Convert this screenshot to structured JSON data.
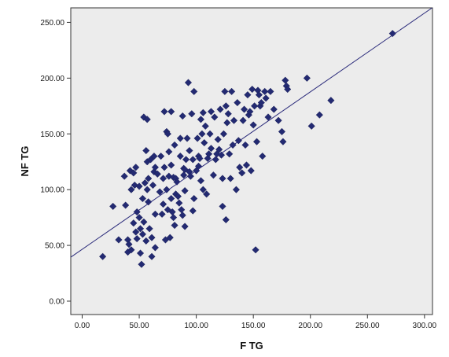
{
  "chart_data": {
    "type": "scatter",
    "title": "",
    "xlabel": "F TG",
    "ylabel": "NF TG",
    "xlim": [
      -10,
      307
    ],
    "ylim": [
      -12,
      263
    ],
    "x_ticks": [
      0,
      50,
      100,
      150,
      200,
      250,
      300
    ],
    "y_ticks": [
      0,
      50,
      100,
      150,
      200,
      250
    ],
    "x_tick_labels": [
      "0.00",
      "50.00",
      "100.00",
      "150.00",
      "200.00",
      "250.00",
      "300.00"
    ],
    "y_tick_labels": [
      "0.00",
      "50.00",
      "100.00",
      "150.00",
      "200.00",
      "250.00"
    ],
    "grid": false,
    "background_color": "#ececec",
    "marker_color": "#232a72",
    "line_color": "#2a2a7a",
    "fit_line": {
      "intercept": 46.5,
      "slope": 0.706
    },
    "series": [
      {
        "marker": "diamond",
        "points": [
          [
            18,
            40
          ],
          [
            27,
            85
          ],
          [
            32,
            55
          ],
          [
            37,
            112
          ],
          [
            38,
            86
          ],
          [
            40,
            44
          ],
          [
            40,
            55
          ],
          [
            41,
            51
          ],
          [
            42,
            117
          ],
          [
            43,
            100
          ],
          [
            43,
            46
          ],
          [
            45,
            115
          ],
          [
            45,
            70
          ],
          [
            46,
            104
          ],
          [
            47,
            120
          ],
          [
            47,
            62
          ],
          [
            48,
            80
          ],
          [
            48,
            56
          ],
          [
            50,
            103
          ],
          [
            50,
            75
          ],
          [
            51,
            65
          ],
          [
            51,
            43
          ],
          [
            52,
            33
          ],
          [
            53,
            60
          ],
          [
            53,
            92
          ],
          [
            54,
            165
          ],
          [
            54,
            71
          ],
          [
            55,
            106
          ],
          [
            56,
            135
          ],
          [
            56,
            54
          ],
          [
            57,
            125
          ],
          [
            57,
            100
          ],
          [
            57,
            163
          ],
          [
            58,
            89
          ],
          [
            58,
            110
          ],
          [
            59,
            65
          ],
          [
            60,
            127
          ],
          [
            61,
            57
          ],
          [
            61,
            40
          ],
          [
            62,
            104
          ],
          [
            63,
            130
          ],
          [
            63,
            116
          ],
          [
            64,
            78
          ],
          [
            64,
            120
          ],
          [
            64,
            48
          ],
          [
            66,
            114
          ],
          [
            68,
            98
          ],
          [
            69,
            130
          ],
          [
            70,
            78
          ],
          [
            71,
            110
          ],
          [
            71,
            87
          ],
          [
            72,
            120
          ],
          [
            72,
            170
          ],
          [
            73,
            55
          ],
          [
            74,
            100
          ],
          [
            74,
            152
          ],
          [
            75,
            82
          ],
          [
            75,
            150
          ],
          [
            76,
            134
          ],
          [
            76,
            112
          ],
          [
            77,
            57
          ],
          [
            78,
            170
          ],
          [
            78,
            122
          ],
          [
            78,
            92
          ],
          [
            79,
            80
          ],
          [
            80,
            111
          ],
          [
            80,
            75
          ],
          [
            81,
            140
          ],
          [
            81,
            68
          ],
          [
            82,
            96
          ],
          [
            82,
            110
          ],
          [
            83,
            107
          ],
          [
            84,
            94
          ],
          [
            85,
            88
          ],
          [
            86,
            130
          ],
          [
            86,
            146
          ],
          [
            87,
            82
          ],
          [
            88,
            77
          ],
          [
            88,
            166
          ],
          [
            89,
            119
          ],
          [
            89,
            113
          ],
          [
            90,
            67
          ],
          [
            90,
            99
          ],
          [
            90,
            118
          ],
          [
            91,
            127
          ],
          [
            92,
            146
          ],
          [
            93,
            196
          ],
          [
            94,
            116
          ],
          [
            94,
            135
          ],
          [
            95,
            112
          ],
          [
            96,
            168
          ],
          [
            97,
            127
          ],
          [
            97,
            81
          ],
          [
            98,
            188
          ],
          [
            98,
            92
          ],
          [
            100,
            117
          ],
          [
            101,
            146
          ],
          [
            102,
            121
          ],
          [
            102,
            130
          ],
          [
            103,
            128
          ],
          [
            104,
            108
          ],
          [
            104,
            163
          ],
          [
            105,
            150
          ],
          [
            106,
            169
          ],
          [
            106,
            100
          ],
          [
            107,
            142
          ],
          [
            108,
            157
          ],
          [
            109,
            96
          ],
          [
            110,
            128
          ],
          [
            111,
            132
          ],
          [
            112,
            150
          ],
          [
            113,
            137
          ],
          [
            113,
            170
          ],
          [
            115,
            113
          ],
          [
            116,
            165
          ],
          [
            117,
            127
          ],
          [
            118,
            132
          ],
          [
            119,
            145
          ],
          [
            120,
            136
          ],
          [
            121,
            172
          ],
          [
            122,
            131
          ],
          [
            123,
            110
          ],
          [
            123,
            85
          ],
          [
            124,
            150
          ],
          [
            125,
            188
          ],
          [
            126,
            175
          ],
          [
            126,
            73
          ],
          [
            127,
            160
          ],
          [
            128,
            168
          ],
          [
            129,
            132
          ],
          [
            130,
            110
          ],
          [
            131,
            188
          ],
          [
            132,
            140
          ],
          [
            133,
            162
          ],
          [
            135,
            100
          ],
          [
            136,
            178
          ],
          [
            137,
            144
          ],
          [
            138,
            120
          ],
          [
            140,
            115
          ],
          [
            141,
            162
          ],
          [
            142,
            172
          ],
          [
            143,
            140
          ],
          [
            144,
            122
          ],
          [
            145,
            185
          ],
          [
            146,
            167
          ],
          [
            147,
            170
          ],
          [
            148,
            117
          ],
          [
            149,
            190
          ],
          [
            150,
            158
          ],
          [
            151,
            175
          ],
          [
            152,
            46
          ],
          [
            153,
            143
          ],
          [
            154,
            189
          ],
          [
            155,
            185
          ],
          [
            156,
            175
          ],
          [
            157,
            178
          ],
          [
            158,
            130
          ],
          [
            160,
            188
          ],
          [
            161,
            182
          ],
          [
            163,
            165
          ],
          [
            165,
            188
          ],
          [
            168,
            172
          ],
          [
            172,
            162
          ],
          [
            175,
            152
          ],
          [
            176,
            143
          ],
          [
            178,
            198
          ],
          [
            179,
            193
          ],
          [
            180,
            190
          ],
          [
            197,
            200
          ],
          [
            201,
            157
          ],
          [
            208,
            167
          ],
          [
            218,
            180
          ],
          [
            272,
            240
          ]
        ]
      }
    ]
  }
}
